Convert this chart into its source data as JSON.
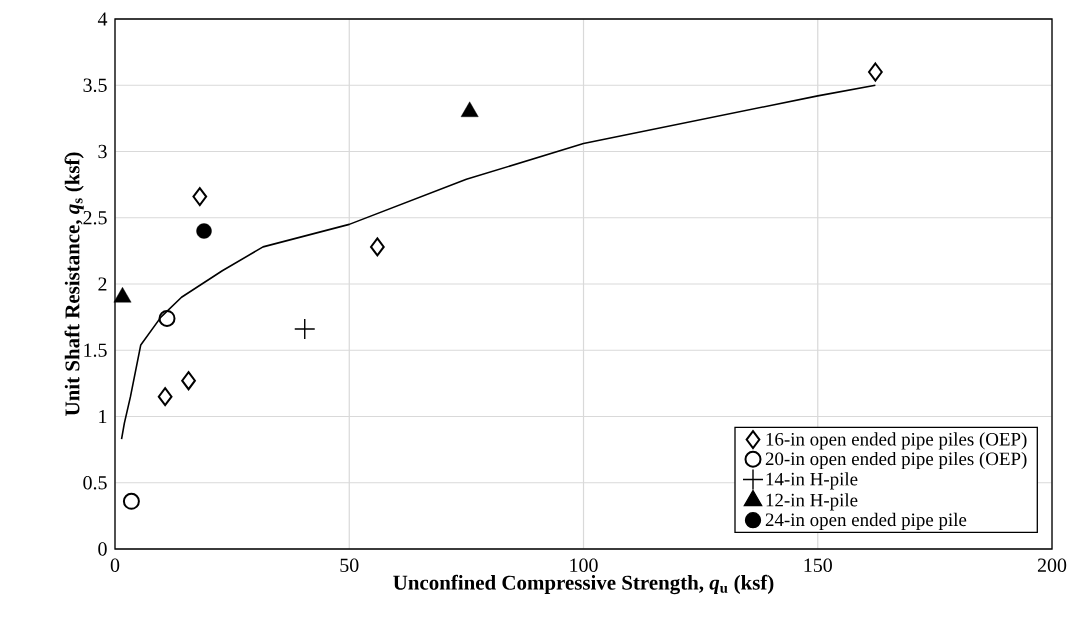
{
  "chart_data": {
    "type": "scatter",
    "xlabel": "Unconfined Compressive Strength, *q*$_{u}$ (ksf)",
    "ylabel": "Unit Shaft Resistance, *q*$_{s}$ (ksf)",
    "xlim": [
      0,
      200
    ],
    "ylim": [
      0,
      4
    ],
    "xticks": [
      0,
      50,
      100,
      150,
      200
    ],
    "yticks": [
      0,
      0.5,
      1,
      1.5,
      2,
      2.5,
      3,
      3.5,
      4
    ],
    "grid": true,
    "legend": "bottom right",
    "series": [
      {
        "name": "16-in open ended pipe piles (OEP)",
        "color": "#000000",
        "marker": "diamond-open",
        "x": [
          10.7,
          15.7,
          18.1,
          56.0,
          162.3
        ],
        "values": [
          1.15,
          1.27,
          2.66,
          2.28,
          3.6
        ]
      },
      {
        "name": "20-in open ended pipe piles (OEP)",
        "color": "#000000",
        "marker": "circle-open",
        "x": [
          3.5,
          11.1
        ],
        "values": [
          0.36,
          1.74
        ]
      },
      {
        "name": "14-in H-pile",
        "color": "#000000",
        "marker": "cross",
        "x": [
          40.5
        ],
        "values": [
          1.66
        ]
      },
      {
        "name": "12-in H-pile",
        "color": "#000000",
        "marker": "triangle",
        "x": [
          1.6,
          75.7
        ],
        "values": [
          1.9,
          3.3
        ]
      },
      {
        "name": "24-in open ended pipe pile",
        "color": "#000000",
        "marker": "circle",
        "x": [
          19.0
        ],
        "values": [
          2.4
        ]
      },
      {
        "type": "line",
        "color": "#000000",
        "marker": "none",
        "line_style": "solid",
        "x": [
          1.4,
          2.0,
          3.3,
          5.5,
          9.8,
          14.2,
          22.9,
          31.6,
          50,
          75,
          100,
          150,
          162.3
        ],
        "values": [
          0.83,
          0.95,
          1.15,
          1.54,
          1.75,
          1.9,
          2.1,
          2.28,
          2.45,
          2.79,
          3.06,
          3.42,
          3.5
        ]
      }
    ]
  }
}
